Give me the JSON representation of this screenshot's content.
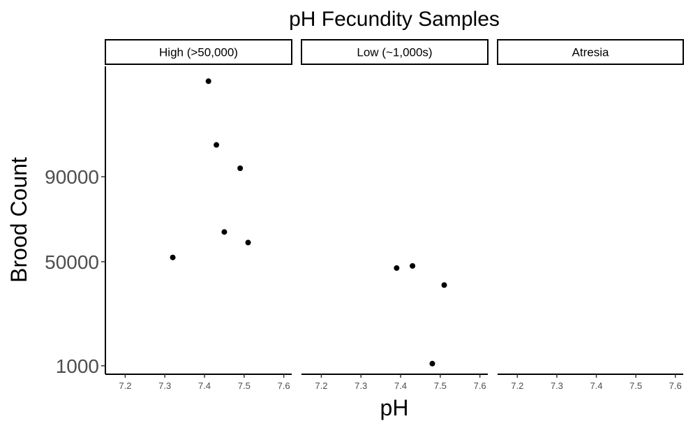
{
  "chart_data": {
    "type": "scatter",
    "title": "pH Fecundity Samples",
    "xlabel": "pH",
    "ylabel": "Brood Count",
    "xlim": [
      7.15,
      7.62
    ],
    "ylim": [
      -3000,
      142000
    ],
    "x_ticks": [
      "7.2",
      "7.3",
      "7.4",
      "7.5",
      "7.6"
    ],
    "y_ticks": [
      "1000",
      "50000",
      "90000"
    ],
    "grid": false,
    "legend": "none",
    "point_color": "#000000",
    "facets": [
      {
        "label": "High (>50,000)",
        "points": [
          {
            "x": 7.41,
            "y": 135000
          },
          {
            "x": 7.43,
            "y": 105000
          },
          {
            "x": 7.49,
            "y": 94000
          },
          {
            "x": 7.45,
            "y": 64000
          },
          {
            "x": 7.51,
            "y": 59000
          },
          {
            "x": 7.32,
            "y": 52000
          }
        ]
      },
      {
        "label": "Low (~1,000s)",
        "points": [
          {
            "x": 7.39,
            "y": 47000
          },
          {
            "x": 7.43,
            "y": 48000
          },
          {
            "x": 7.51,
            "y": 39000
          },
          {
            "x": 7.48,
            "y": 2000
          }
        ]
      },
      {
        "label": "Atresia",
        "points": []
      }
    ]
  }
}
